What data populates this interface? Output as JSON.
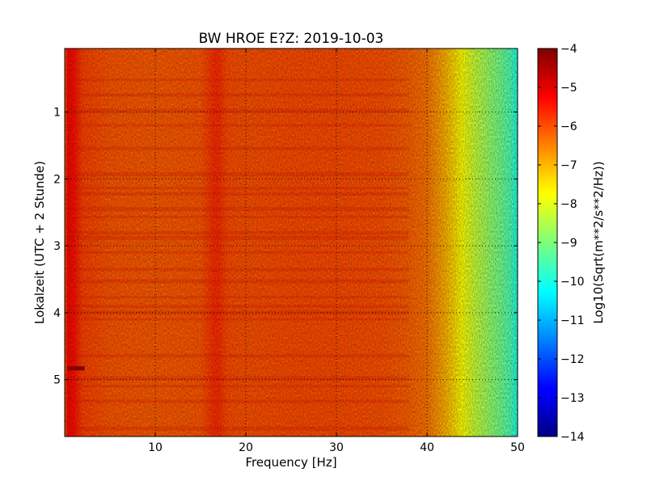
{
  "chart_data": {
    "type": "heatmap",
    "title": "BW HROE E?Z: 2019-10-03",
    "xlabel": "Frequency [Hz]",
    "ylabel": "Lokalzeit (UTC + 2 Stunde)",
    "xlim": [
      0,
      50
    ],
    "ylim": [
      5.85,
      0.05
    ],
    "y_axis_inverted": true,
    "xticks": [
      10,
      20,
      30,
      40,
      50
    ],
    "yticks": [
      1,
      2,
      3,
      4,
      5
    ],
    "grid": true,
    "colormap": "jet",
    "colorbar": {
      "label": "Log10(Sqrt(m**2/s**2/Hz))",
      "range": [
        -14,
        -4
      ],
      "ticks": [
        -4,
        -5,
        -6,
        -7,
        -8,
        -9,
        -10,
        -11,
        -12,
        -13,
        -14
      ]
    },
    "spectral_profile": {
      "frequency_hz": [
        0,
        0.3,
        1,
        2,
        5,
        10,
        15,
        16.5,
        17,
        18,
        20,
        25,
        30,
        35,
        38,
        40,
        41,
        42,
        43,
        44,
        45,
        46,
        47,
        48,
        49,
        50
      ],
      "log10_amplitude": [
        -6.4,
        -5.3,
        -5.4,
        -5.9,
        -6.1,
        -6.15,
        -6.1,
        -5.7,
        -5.7,
        -6.0,
        -6.05,
        -6.0,
        -6.0,
        -6.05,
        -6.2,
        -6.4,
        -6.7,
        -7.0,
        -7.4,
        -7.8,
        -8.2,
        -8.5,
        -8.8,
        -9.1,
        -9.4,
        -10.0
      ]
    }
  }
}
